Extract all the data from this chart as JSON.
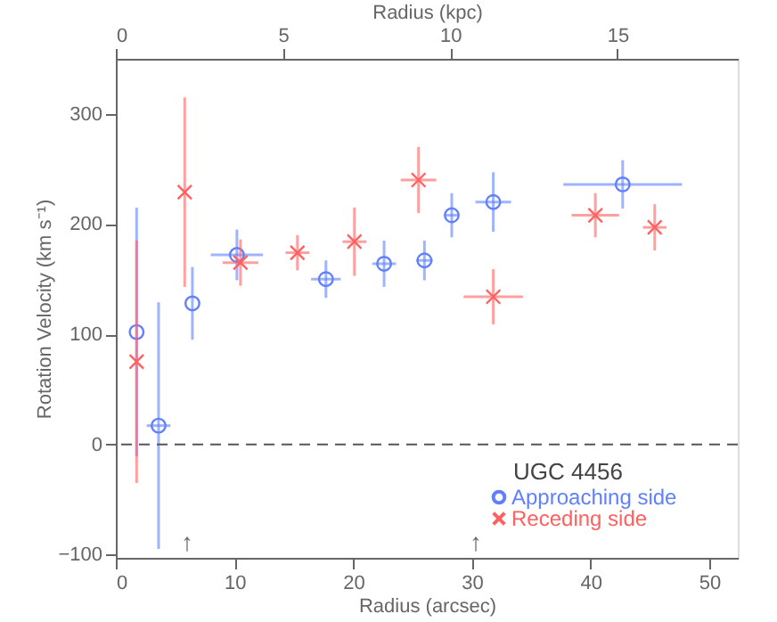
{
  "chart_data": {
    "type": "scatter",
    "xlabel": "Radius (arcsec)",
    "ylabel": "Rotation Velocity (km s⁻¹)",
    "x2label": "Radius (kpc)",
    "legend_title": "UGC 4456",
    "xlim": [
      0,
      52.4
    ],
    "xticks": [
      0,
      10,
      20,
      30,
      40,
      50
    ],
    "x2lim": [
      0,
      18.6
    ],
    "x2ticks": [
      0,
      5,
      10,
      15
    ],
    "ylim": [
      -103,
      350
    ],
    "yticks": [
      -100,
      0,
      100,
      200,
      300
    ],
    "grid": false,
    "legend": "bottom right",
    "series": [
      {
        "name": "Approaching side",
        "color": "#6080ff",
        "marker": "circle",
        "x": [
          1.75,
          3.6,
          6.45,
          10.2,
          17.7,
          22.6,
          26.0,
          28.3,
          31.8,
          42.7
        ],
        "values": [
          102,
          17,
          128,
          172,
          150,
          164,
          167,
          208,
          220,
          236
        ],
        "errors": [
          113,
          112,
          33,
          23,
          17,
          21,
          18,
          20,
          27,
          22
        ],
        "xerrors": [
          null,
          1,
          null,
          2.2,
          1.25,
          1,
          0.7,
          0.6,
          1.5,
          5.0
        ]
      },
      {
        "name": "Receding side",
        "color": "#ff6060",
        "marker": "cross",
        "x": [
          1.75,
          5.8,
          10.5,
          15.3,
          20.1,
          25.5,
          31.8,
          40.4,
          45.4
        ],
        "values": [
          75,
          229,
          165,
          174,
          184,
          240,
          134,
          208,
          197
        ],
        "errors": [
          110,
          86,
          21,
          16,
          31,
          30,
          25,
          20,
          21
        ],
        "xerrors": [
          null,
          null,
          1.5,
          1,
          1,
          1.5,
          2.5,
          2,
          1
        ]
      }
    ],
    "ref_lines": [
      {
        "axis": "y",
        "value": 0,
        "line_style": "dashed",
        "color": "#555555"
      }
    ],
    "annotations": [
      "↑",
      "↑"
    ]
  }
}
